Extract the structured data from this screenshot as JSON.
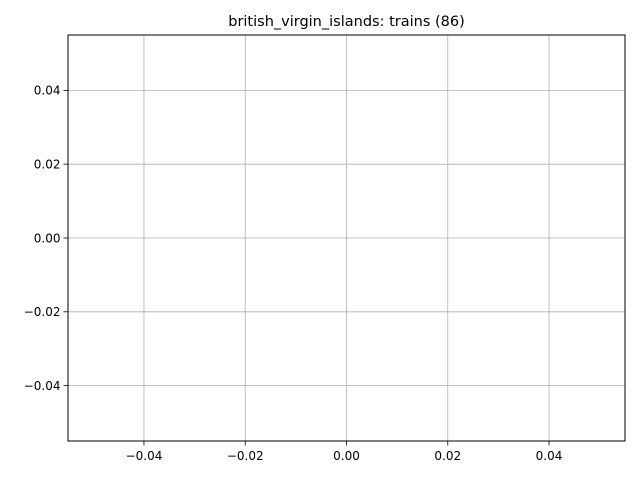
{
  "chart_data": {
    "type": "line",
    "title": "british_virgin_islands: trains (86)",
    "xlabel": "",
    "ylabel": "",
    "series": [],
    "xlim": [
      -0.055,
      0.055
    ],
    "ylim": [
      -0.055,
      0.055
    ],
    "xticks": [
      -0.04,
      -0.02,
      0.0,
      0.02,
      0.04
    ],
    "xtick_labels": [
      "−0.04",
      "−0.02",
      "0.00",
      "0.02",
      "0.04"
    ],
    "yticks": [
      -0.04,
      -0.02,
      0.0,
      0.02,
      0.04
    ],
    "ytick_labels": [
      "−0.04",
      "−0.02",
      "0.00",
      "0.02",
      "0.04"
    ],
    "grid": true,
    "colors": {
      "grid": "#b0b0b0",
      "axes": "#000000",
      "background": "#ffffff"
    }
  }
}
